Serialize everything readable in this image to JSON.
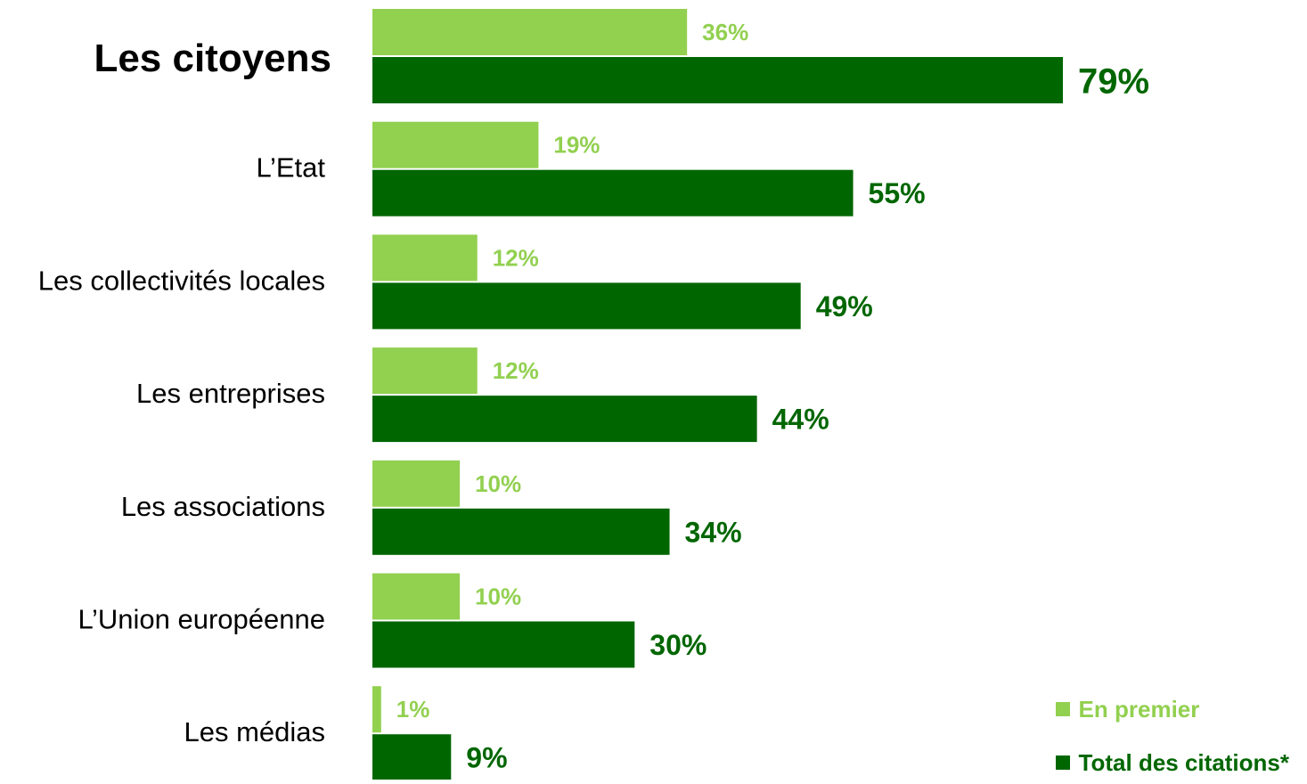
{
  "chart_data": {
    "type": "bar",
    "orientation": "horizontal",
    "categories": [
      "Les citoyens",
      "L’Etat",
      "Les collectivités locales",
      "Les entreprises",
      "Les associations",
      "L’Union européenne",
      "Les médias"
    ],
    "highlighted_category": "Les citoyens",
    "series": [
      {
        "name": "En premier",
        "values": [
          36,
          19,
          12,
          12,
          10,
          10,
          1
        ],
        "labels": [
          "36%",
          "19%",
          "12%",
          "12%",
          "10%",
          "10%",
          "1%"
        ],
        "color": "#92d050"
      },
      {
        "name": "Total des citations*",
        "values": [
          79,
          55,
          49,
          44,
          34,
          30,
          9
        ],
        "labels": [
          "79%",
          "55%",
          "49%",
          "44%",
          "34%",
          "30%",
          "9%"
        ],
        "color": "#006600"
      }
    ],
    "xlim": [
      0,
      100
    ],
    "title": "",
    "xlabel": "",
    "ylabel": "",
    "grid": false,
    "legend_position": "bottom-right"
  }
}
